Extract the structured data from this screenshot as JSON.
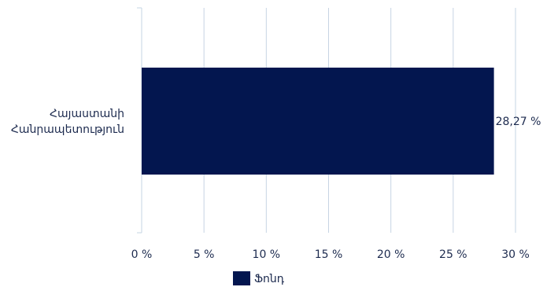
{
  "chart_data": {
    "type": "bar",
    "orientation": "horizontal",
    "categories": [
      [
        "Հայաստանի",
        "Հանրապետություն"
      ]
    ],
    "series": [
      {
        "name": "Ֆոնդ",
        "values": [
          28.27
        ],
        "color": "#03164f"
      }
    ],
    "data_labels": [
      "28,27 %"
    ],
    "xticks": [
      "0 %",
      "5 %",
      "10 %",
      "15 %",
      "20 %",
      "25 %",
      "30 %"
    ],
    "xlim": [
      0,
      30
    ],
    "grid": true,
    "legend_position": "bottom",
    "title": "",
    "xlabel": "",
    "ylabel": ""
  },
  "colors": {
    "bar": "#03164f",
    "grid": "#c6d4e3",
    "text": "#1d2b4f"
  }
}
